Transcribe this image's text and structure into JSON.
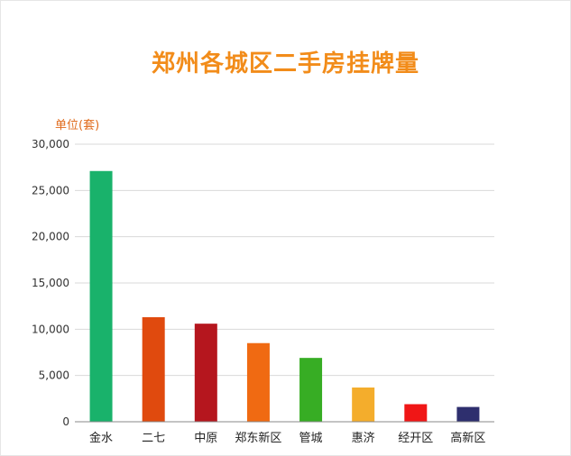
{
  "chart_data": {
    "type": "bar",
    "title": "郑州各城区二手房挂牌量",
    "ylabel": "单位(套)",
    "categories": [
      "金水",
      "二七",
      "中原",
      "郑东新区",
      "管城",
      "惠济",
      "经开区",
      "高新区"
    ],
    "values": [
      27100,
      11300,
      10600,
      8500,
      6900,
      3700,
      1900,
      1600
    ],
    "colors": [
      "#19b26b",
      "#e04a0e",
      "#b5161e",
      "#f06a12",
      "#37ad24",
      "#f4ad2c",
      "#f01616",
      "#2e2f6e"
    ],
    "ylim": [
      0,
      30000
    ],
    "yticks": [
      "0",
      "5,000",
      "10,000",
      "15,000",
      "20,000",
      "25,000",
      "30,000"
    ],
    "ytick_values": [
      0,
      5000,
      10000,
      15000,
      20000,
      25000,
      30000
    ],
    "grid": true
  }
}
